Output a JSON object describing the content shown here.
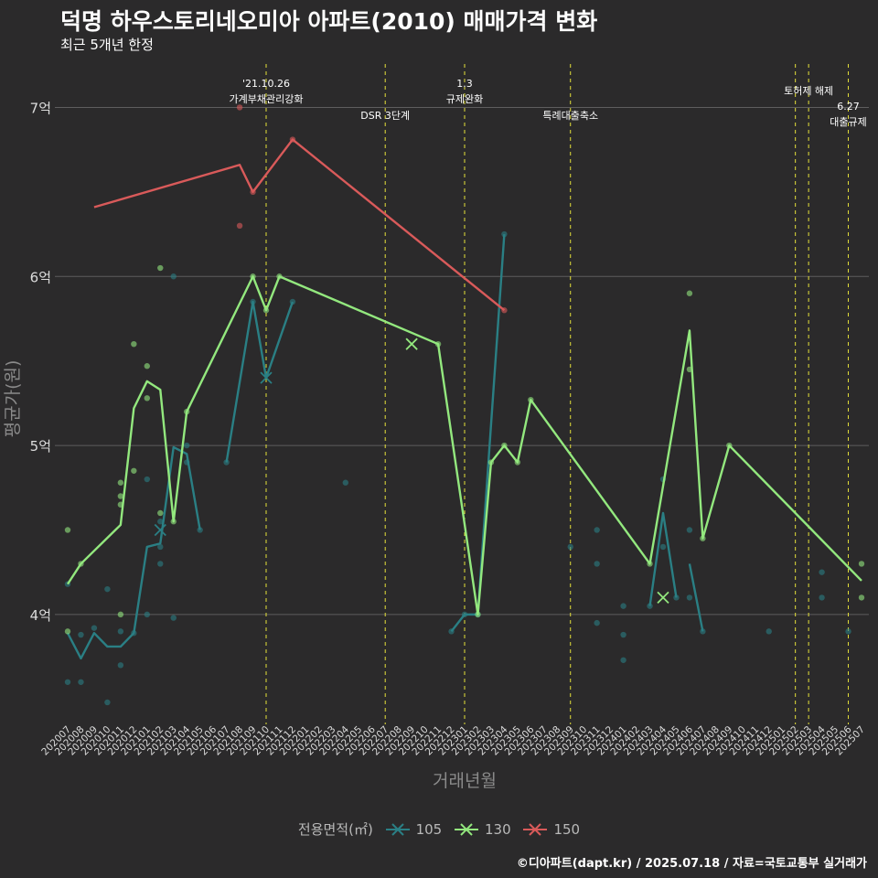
{
  "header": {
    "title": "덕명 하우스토리네오미아 아파트(2010) 매매가격 변화",
    "subtitle": "최근 5개년 한정"
  },
  "caption": "©디아파트(dapt.kr) / 2025.07.18 / 자료=국토교통부 실거래가",
  "legend": {
    "title": "전용면적(㎡)",
    "items": [
      {
        "label": "105",
        "color": "#2a7f84"
      },
      {
        "label": "130",
        "color": "#93e87e"
      },
      {
        "label": "150",
        "color": "#d95a5a"
      }
    ]
  },
  "chart_data": {
    "type": "line",
    "xlabel": "거래년월",
    "ylabel": "평균가(원)",
    "ylim": [
      3.35,
      7.3
    ],
    "y_ticks": [
      {
        "value": 4,
        "label": "4억"
      },
      {
        "value": 5,
        "label": "5억"
      },
      {
        "value": 6,
        "label": "6억"
      },
      {
        "value": 7,
        "label": "7억"
      }
    ],
    "grid": true,
    "categories": [
      "202007",
      "202008",
      "202009",
      "202010",
      "202011",
      "202012",
      "202101",
      "202102",
      "202103",
      "202104",
      "202105",
      "202106",
      "202107",
      "202108",
      "202109",
      "202110",
      "202111",
      "202112",
      "202201",
      "202202",
      "202203",
      "202204",
      "202205",
      "202206",
      "202207",
      "202208",
      "202209",
      "202210",
      "202211",
      "202212",
      "202301",
      "202302",
      "202303",
      "202304",
      "202305",
      "202306",
      "202307",
      "202308",
      "202309",
      "202310",
      "202311",
      "202312",
      "202401",
      "202402",
      "202403",
      "202404",
      "202405",
      "202406",
      "202407",
      "202408",
      "202409",
      "202410",
      "202411",
      "202412",
      "202501",
      "202502",
      "202503",
      "202504",
      "202505",
      "202506",
      "202507"
    ],
    "series": [
      {
        "name": "105",
        "color": "#2a7f84",
        "line": [
          [
            0,
            3.89
          ],
          [
            1,
            3.74
          ],
          [
            2,
            3.89
          ],
          [
            3,
            3.81
          ],
          [
            4,
            3.81
          ],
          [
            5,
            3.89
          ],
          [
            6,
            4.4
          ],
          [
            7,
            4.42
          ],
          [
            8,
            4.99
          ],
          [
            9,
            4.95
          ],
          [
            10,
            4.5
          ],
          null,
          [
            12,
            4.9
          ],
          [
            14,
            5.85
          ],
          [
            15,
            5.4
          ],
          [
            17,
            5.85
          ],
          null,
          [
            29,
            3.9
          ],
          [
            30,
            4.0
          ],
          [
            31,
            4.0
          ],
          [
            33,
            6.25
          ],
          null,
          [
            44,
            4.05
          ],
          [
            45,
            4.6
          ],
          [
            46,
            4.1
          ],
          null,
          [
            47,
            4.3
          ],
          [
            48,
            3.9
          ]
        ],
        "points": [
          [
            0,
            3.6
          ],
          [
            0,
            4.18
          ],
          [
            1,
            3.6
          ],
          [
            1,
            3.88
          ],
          [
            2,
            3.92
          ],
          [
            3,
            3.48
          ],
          [
            3,
            4.15
          ],
          [
            4,
            3.7
          ],
          [
            4,
            3.9
          ],
          [
            5,
            3.89
          ],
          [
            6,
            4.0
          ],
          [
            6,
            4.8
          ],
          [
            7,
            4.3
          ],
          [
            7,
            4.4
          ],
          [
            7,
            4.55
          ],
          [
            8,
            6.0
          ],
          [
            8,
            3.98
          ],
          [
            9,
            4.9
          ],
          [
            9,
            5.0
          ],
          [
            10,
            4.5
          ],
          [
            12,
            4.9
          ],
          [
            14,
            5.85
          ],
          [
            17,
            5.85
          ],
          [
            21,
            4.78
          ],
          [
            29,
            3.9
          ],
          [
            30,
            4.0
          ],
          [
            31,
            4.0
          ],
          [
            33,
            6.25
          ],
          [
            38,
            4.4
          ],
          [
            40,
            3.95
          ],
          [
            40,
            4.3
          ],
          [
            40,
            4.5
          ],
          [
            42,
            3.73
          ],
          [
            42,
            3.88
          ],
          [
            42,
            4.05
          ],
          [
            44,
            4.05
          ],
          [
            45,
            4.4
          ],
          [
            45,
            4.8
          ],
          [
            46,
            4.1
          ],
          [
            47,
            4.1
          ],
          [
            47,
            4.5
          ],
          [
            48,
            3.9
          ],
          [
            53,
            3.9
          ],
          [
            57,
            4.1
          ],
          [
            57,
            4.25
          ],
          [
            59,
            3.9
          ]
        ],
        "crosses": [
          [
            7,
            4.5
          ],
          [
            15,
            5.4
          ]
        ]
      },
      {
        "name": "130",
        "color": "#93e87e",
        "line": [
          [
            0,
            4.18
          ],
          [
            1,
            4.3
          ],
          [
            4,
            4.53
          ],
          [
            5,
            5.22
          ],
          [
            6,
            5.38
          ],
          [
            7,
            5.33
          ],
          [
            8,
            4.55
          ],
          [
            9,
            5.2
          ],
          [
            14,
            6.0
          ],
          [
            15,
            5.8
          ],
          [
            16,
            6.0
          ],
          [
            28,
            5.6
          ],
          [
            31,
            4.0
          ],
          [
            32,
            4.9
          ],
          [
            33,
            5.0
          ],
          [
            34,
            4.9
          ],
          [
            35,
            5.27
          ],
          [
            44,
            4.3
          ],
          [
            47,
            5.68
          ],
          [
            48,
            4.45
          ],
          [
            50,
            5.0
          ],
          [
            60,
            4.2
          ]
        ],
        "points": [
          [
            0,
            3.9
          ],
          [
            0,
            4.5
          ],
          [
            1,
            4.3
          ],
          [
            4,
            4.0
          ],
          [
            4,
            4.65
          ],
          [
            4,
            4.7
          ],
          [
            4,
            4.78
          ],
          [
            5,
            4.85
          ],
          [
            5,
            5.6
          ],
          [
            6,
            5.28
          ],
          [
            6,
            5.47
          ],
          [
            7,
            4.6
          ],
          [
            7,
            6.05
          ],
          [
            8,
            4.55
          ],
          [
            9,
            5.2
          ],
          [
            14,
            6.0
          ],
          [
            15,
            5.8
          ],
          [
            16,
            6.0
          ],
          [
            28,
            5.6
          ],
          [
            31,
            4.0
          ],
          [
            32,
            4.9
          ],
          [
            33,
            5.0
          ],
          [
            34,
            4.9
          ],
          [
            35,
            5.27
          ],
          [
            44,
            4.3
          ],
          [
            47,
            5.45
          ],
          [
            47,
            5.9
          ],
          [
            48,
            4.45
          ],
          [
            50,
            5.0
          ],
          [
            60,
            4.1
          ],
          [
            60,
            4.3
          ]
        ],
        "crosses": [
          [
            26,
            5.6
          ],
          [
            45,
            4.1
          ]
        ]
      },
      {
        "name": "150",
        "color": "#d95a5a",
        "line": [
          [
            2,
            6.41
          ],
          [
            13,
            6.66
          ],
          [
            14,
            6.5
          ],
          [
            17,
            6.81
          ],
          [
            33,
            5.8
          ]
        ],
        "points": [
          [
            13,
            6.3
          ],
          [
            13,
            7.0
          ],
          [
            14,
            6.5
          ],
          [
            17,
            6.81
          ],
          [
            33,
            5.8
          ]
        ],
        "crosses": []
      }
    ],
    "events": [
      {
        "x": 15,
        "lines": [
          "'21.10.26",
          "가계부채관리강화"
        ],
        "row": 0
      },
      {
        "x": 24,
        "lines": [
          "DSR 3단계"
        ],
        "row": 2
      },
      {
        "x": 30,
        "lines": [
          "1.3",
          "규제완화"
        ],
        "row": 0
      },
      {
        "x": 38,
        "lines": [
          "특례대출축소"
        ],
        "row": 2
      },
      {
        "x": 55,
        "lines": [],
        "row": 1
      },
      {
        "x": 56,
        "lines": [
          "토허제 해제"
        ],
        "row": 1
      },
      {
        "x": 59,
        "lines": [
          "6.27",
          "대출규제"
        ],
        "row": 3
      }
    ]
  }
}
